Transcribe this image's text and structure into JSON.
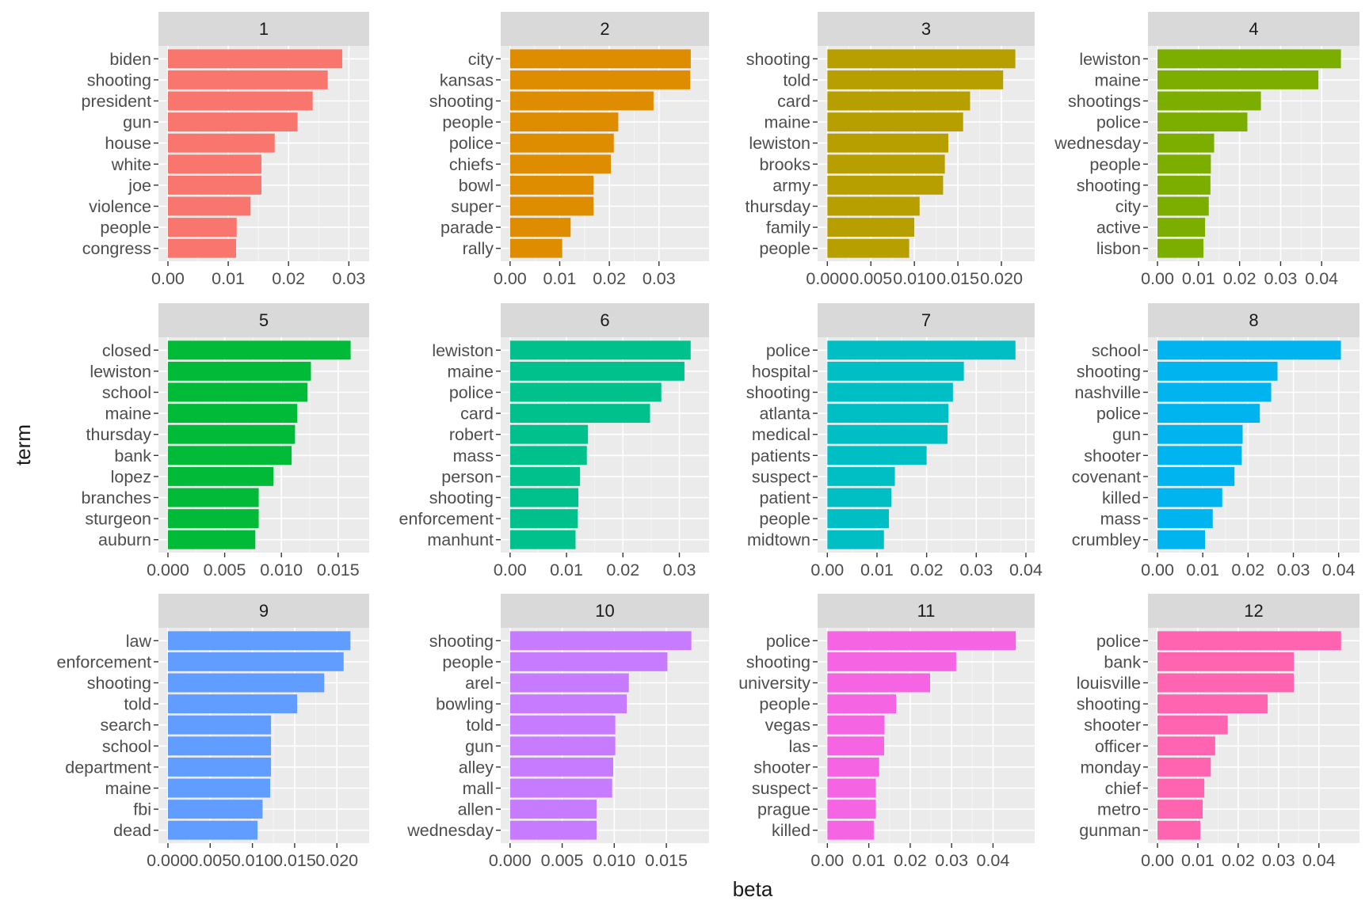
{
  "chart_data": {
    "type": "bar",
    "orientation": "horizontal",
    "xlabel": "beta",
    "ylabel": "term",
    "facet_layout": {
      "rows": 3,
      "cols": 4
    },
    "grid": true,
    "panels": [
      {
        "label": "1",
        "color": "#F8766D",
        "xlim": [
          0,
          0.0318
        ],
        "ticks": [
          0,
          0.01,
          0.02,
          0.03
        ],
        "tick_labels": [
          "0.00",
          "0.01",
          "0.02",
          "0.03"
        ],
        "terms": [
          "biden",
          "shooting",
          "president",
          "gun",
          "house",
          "white",
          "joe",
          "violence",
          "people",
          "congress"
        ],
        "values": [
          0.0289,
          0.0265,
          0.024,
          0.0215,
          0.0177,
          0.0155,
          0.0155,
          0.0137,
          0.0114,
          0.0113
        ]
      },
      {
        "label": "2",
        "color": "#DE8C00",
        "xlim": [
          0,
          0.0382
        ],
        "ticks": [
          0,
          0.01,
          0.02,
          0.03
        ],
        "tick_labels": [
          "0.00",
          "0.01",
          "0.02",
          "0.03"
        ],
        "terms": [
          "city",
          "kansas",
          "shooting",
          "people",
          "police",
          "chiefs",
          "bowl",
          "super",
          "parade",
          "rally"
        ],
        "values": [
          0.0364,
          0.0363,
          0.0289,
          0.0218,
          0.0209,
          0.0203,
          0.0168,
          0.0168,
          0.0122,
          0.0105
        ]
      },
      {
        "label": "3",
        "color": "#B79F00",
        "xlim": [
          0,
          0.0227
        ],
        "ticks": [
          0,
          0.005,
          0.01,
          0.015,
          0.02
        ],
        "tick_labels": [
          "0.000",
          "0.005",
          "0.010",
          "0.015",
          "0.020"
        ],
        "terms": [
          "shooting",
          "told",
          "card",
          "maine",
          "lewiston",
          "brooks",
          "army",
          "thursday",
          "family",
          "people"
        ],
        "values": [
          0.0216,
          0.0202,
          0.0164,
          0.0156,
          0.0139,
          0.0135,
          0.0133,
          0.0106,
          0.01,
          0.0094
        ]
      },
      {
        "label": "4",
        "color": "#7CAE00",
        "xlim": [
          0,
          0.0469
        ],
        "ticks": [
          0,
          0.01,
          0.02,
          0.03,
          0.04
        ],
        "tick_labels": [
          "0.00",
          "0.01",
          "0.02",
          "0.03",
          "0.04"
        ],
        "terms": [
          "lewiston",
          "maine",
          "shootings",
          "police",
          "wednesday",
          "people",
          "shooting",
          "city",
          "active",
          "lisbon"
        ],
        "values": [
          0.0447,
          0.0392,
          0.0252,
          0.0219,
          0.0138,
          0.013,
          0.0129,
          0.0125,
          0.0116,
          0.0112
        ]
      },
      {
        "label": "5",
        "color": "#00BA38",
        "xlim": [
          0,
          0.0169
        ],
        "ticks": [
          0,
          0.005,
          0.01,
          0.015
        ],
        "tick_labels": [
          "0.000",
          "0.005",
          "0.010",
          "0.015"
        ],
        "terms": [
          "closed",
          "lewiston",
          "school",
          "maine",
          "thursday",
          "bank",
          "lopez",
          "branches",
          "sturgeon",
          "auburn"
        ],
        "values": [
          0.0161,
          0.0126,
          0.0123,
          0.0114,
          0.0112,
          0.0109,
          0.0093,
          0.008,
          0.008,
          0.0077
        ]
      },
      {
        "label": "6",
        "color": "#00C08B",
        "xlim": [
          0,
          0.0336
        ],
        "ticks": [
          0,
          0.01,
          0.02,
          0.03
        ],
        "tick_labels": [
          "0.00",
          "0.01",
          "0.02",
          "0.03"
        ],
        "terms": [
          "lewiston",
          "maine",
          "police",
          "card",
          "robert",
          "mass",
          "person",
          "shooting",
          "enforcement",
          "manhunt"
        ],
        "values": [
          0.032,
          0.0309,
          0.0268,
          0.0248,
          0.0138,
          0.0136,
          0.0124,
          0.0121,
          0.012,
          0.0116
        ]
      },
      {
        "label": "7",
        "color": "#00BFC4",
        "xlim": [
          0,
          0.0398
        ],
        "ticks": [
          0,
          0.01,
          0.02,
          0.03,
          0.04
        ],
        "tick_labels": [
          "0.00",
          "0.01",
          "0.02",
          "0.03",
          "0.04"
        ],
        "terms": [
          "police",
          "hospital",
          "shooting",
          "atlanta",
          "medical",
          "patients",
          "suspect",
          "patient",
          "people",
          "midtown"
        ],
        "values": [
          0.0379,
          0.0275,
          0.0253,
          0.0244,
          0.0242,
          0.02,
          0.0136,
          0.0129,
          0.0124,
          0.0114
        ]
      },
      {
        "label": "8",
        "color": "#00B4F0",
        "xlim": [
          0,
          0.0425
        ],
        "ticks": [
          0,
          0.01,
          0.02,
          0.03,
          0.04
        ],
        "tick_labels": [
          "0.00",
          "0.01",
          "0.02",
          "0.03",
          "0.04"
        ],
        "terms": [
          "school",
          "shooting",
          "nashville",
          "police",
          "gun",
          "shooter",
          "covenant",
          "killed",
          "mass",
          "crumbley"
        ],
        "values": [
          0.0405,
          0.0265,
          0.0251,
          0.0226,
          0.0188,
          0.0186,
          0.017,
          0.0143,
          0.0122,
          0.0105
        ]
      },
      {
        "label": "9",
        "color": "#619CFF",
        "xlim": [
          0,
          0.0227
        ],
        "ticks": [
          0,
          0.005,
          0.01,
          0.015,
          0.02
        ],
        "tick_labels": [
          "0.000",
          "0.005",
          "0.010",
          "0.015",
          "0.020"
        ],
        "terms": [
          "law",
          "enforcement",
          "shooting",
          "told",
          "search",
          "school",
          "department",
          "maine",
          "fbi",
          "dead"
        ],
        "values": [
          0.0216,
          0.0208,
          0.0185,
          0.0153,
          0.0122,
          0.0122,
          0.0122,
          0.0121,
          0.0112,
          0.0106
        ]
      },
      {
        "label": "10",
        "color": "#C77CFF",
        "xlim": [
          0,
          0.0182
        ],
        "ticks": [
          0,
          0.005,
          0.01,
          0.015
        ],
        "tick_labels": [
          "0.000",
          "0.005",
          "0.010",
          "0.015"
        ],
        "terms": [
          "shooting",
          "people",
          "arel",
          "bowling",
          "told",
          "gun",
          "alley",
          "mall",
          "allen",
          "wednesday"
        ],
        "values": [
          0.0174,
          0.0151,
          0.0114,
          0.0112,
          0.0101,
          0.0101,
          0.0099,
          0.0098,
          0.0083,
          0.0083
        ]
      },
      {
        "label": "11",
        "color": "#F564E3",
        "xlim": [
          0,
          0.0477
        ],
        "ticks": [
          0,
          0.01,
          0.02,
          0.03,
          0.04
        ],
        "tick_labels": [
          "0.00",
          "0.01",
          "0.02",
          "0.03",
          "0.04"
        ],
        "terms": [
          "police",
          "shooting",
          "university",
          "people",
          "vegas",
          "las",
          "shooter",
          "suspect",
          "prague",
          "killed"
        ],
        "values": [
          0.0455,
          0.0311,
          0.0248,
          0.0166,
          0.0138,
          0.0137,
          0.0125,
          0.0117,
          0.0117,
          0.0112
        ]
      },
      {
        "label": "12",
        "color": "#FF64B0",
        "xlim": [
          0,
          0.0477
        ],
        "ticks": [
          0,
          0.01,
          0.02,
          0.03,
          0.04
        ],
        "tick_labels": [
          "0.00",
          "0.01",
          "0.02",
          "0.03",
          "0.04"
        ],
        "terms": [
          "police",
          "bank",
          "louisville",
          "shooting",
          "shooter",
          "officer",
          "monday",
          "chief",
          "metro",
          "gunman"
        ],
        "values": [
          0.0455,
          0.0338,
          0.0338,
          0.0273,
          0.0174,
          0.0143,
          0.0132,
          0.0116,
          0.0112,
          0.0106
        ]
      }
    ]
  }
}
